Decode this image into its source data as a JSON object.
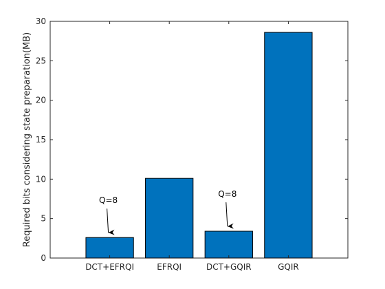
{
  "chart_data": {
    "type": "bar",
    "title": "",
    "xlabel": "",
    "ylabel": "Required bits considering state preparation(MB)",
    "categories": [
      "DCT+EFRQI",
      "EFRQI",
      "DCT+GQIR",
      "GQIR"
    ],
    "values": [
      2.6,
      10.1,
      3.4,
      28.6
    ],
    "ylim": [
      0,
      30
    ],
    "yticks": [
      0,
      5,
      10,
      15,
      20,
      25,
      30
    ],
    "grid": false,
    "bar_color": "#0072BD",
    "annotations": [
      {
        "text": "Q=8",
        "category": "DCT+EFRQI"
      },
      {
        "text": "Q=8",
        "category": "DCT+GQIR"
      }
    ]
  }
}
